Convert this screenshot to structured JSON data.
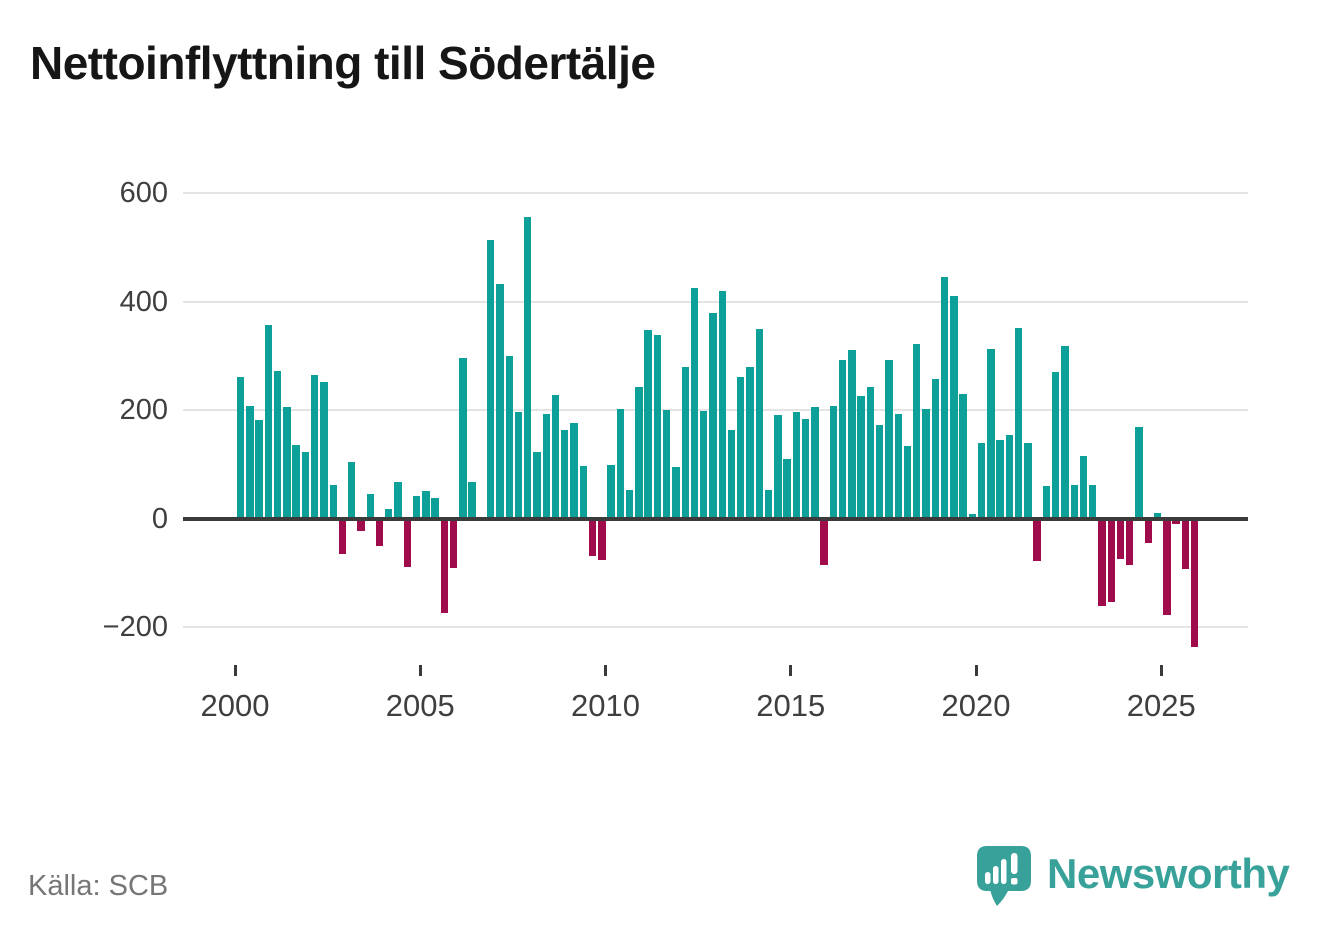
{
  "title": "Nettoinflyttning till Södertälje",
  "source": "Källa: SCB",
  "branding": {
    "logo_text": "Newsworthy",
    "logo_icon": "newsworthy-speech-bubble-barchart-icon"
  },
  "colors": {
    "positive_bar": "#0da099",
    "negative_bar": "#a00b4b",
    "grid": "#e4e4e4",
    "zero_axis": "#3b3b3b",
    "tick_label": "#3f3f3f",
    "title_text": "#161616",
    "source_text": "#767676",
    "logo_teal": "#38a29a"
  },
  "chart_data": {
    "type": "bar",
    "title": "Nettoinflyttning till Södertälje",
    "xlabel": "",
    "ylabel": "",
    "x_unit": "quarter",
    "grid": "horizontal",
    "legend": "none",
    "ylim": [
      -260,
      650
    ],
    "ytick_values": [
      600,
      400,
      200,
      0,
      -200
    ],
    "ytick_labels": [
      "600",
      "400",
      "200",
      "0",
      "−200"
    ],
    "xtick_years": [
      2000,
      2005,
      2010,
      2015,
      2020,
      2025
    ],
    "xtick_labels": [
      "2000",
      "2005",
      "2010",
      "2015",
      "2020",
      "2025"
    ],
    "categories": [
      "2000Q1",
      "2000Q2",
      "2000Q3",
      "2000Q4",
      "2001Q1",
      "2001Q2",
      "2001Q3",
      "2001Q4",
      "2002Q1",
      "2002Q2",
      "2002Q3",
      "2002Q4",
      "2003Q1",
      "2003Q2",
      "2003Q3",
      "2003Q4",
      "2004Q1",
      "2004Q2",
      "2004Q3",
      "2004Q4",
      "2005Q1",
      "2005Q2",
      "2005Q3",
      "2005Q4",
      "2006Q1",
      "2006Q2",
      "2006Q3",
      "2006Q4",
      "2007Q1",
      "2007Q2",
      "2007Q3",
      "2007Q4",
      "2008Q1",
      "2008Q2",
      "2008Q3",
      "2008Q4",
      "2009Q1",
      "2009Q2",
      "2009Q3",
      "2009Q4",
      "2010Q1",
      "2010Q2",
      "2010Q3",
      "2010Q4",
      "2011Q1",
      "2011Q2",
      "2011Q3",
      "2011Q4",
      "2012Q1",
      "2012Q2",
      "2012Q3",
      "2012Q4",
      "2013Q1",
      "2013Q2",
      "2013Q3",
      "2013Q4",
      "2014Q1",
      "2014Q2",
      "2014Q3",
      "2014Q4",
      "2015Q1",
      "2015Q2",
      "2015Q3",
      "2015Q4",
      "2016Q1",
      "2016Q2",
      "2016Q3",
      "2016Q4",
      "2017Q1",
      "2017Q2",
      "2017Q3",
      "2017Q4",
      "2018Q1",
      "2018Q2",
      "2018Q3",
      "2018Q4",
      "2019Q1",
      "2019Q2",
      "2019Q3",
      "2019Q4",
      "2020Q1",
      "2020Q2",
      "2020Q3",
      "2020Q4",
      "2021Q1",
      "2021Q2",
      "2021Q3",
      "2021Q4",
      "2022Q1",
      "2022Q2",
      "2022Q3",
      "2022Q4",
      "2023Q1",
      "2023Q2",
      "2023Q3",
      "2023Q4",
      "2024Q1",
      "2024Q2",
      "2024Q3",
      "2024Q4",
      "2025Q1",
      "2025Q2",
      "2025Q3",
      "2025Q4"
    ],
    "values": [
      260,
      207,
      181,
      356,
      272,
      205,
      135,
      122,
      264,
      252,
      61,
      -66,
      104,
      -23,
      45,
      -51,
      17,
      67,
      -90,
      41,
      50,
      38,
      -175,
      -92,
      295,
      68,
      0,
      513,
      432,
      300,
      197,
      556,
      123,
      192,
      227,
      164,
      176,
      96,
      -70,
      -76,
      98,
      201,
      52,
      242,
      347,
      338,
      200,
      95,
      280,
      425,
      198,
      378,
      420,
      163,
      260,
      280,
      350,
      52,
      191,
      110,
      197,
      183,
      206,
      -86,
      207,
      293,
      310,
      225,
      242,
      172,
      293,
      193,
      133,
      321,
      201,
      258,
      445,
      410,
      230,
      8,
      140,
      313,
      145,
      153,
      352,
      140,
      -78,
      60,
      270,
      318,
      62,
      115,
      61,
      -162,
      -153,
      -75,
      -85,
      168,
      -45,
      10,
      -177,
      -10,
      -93,
      -237
    ]
  }
}
